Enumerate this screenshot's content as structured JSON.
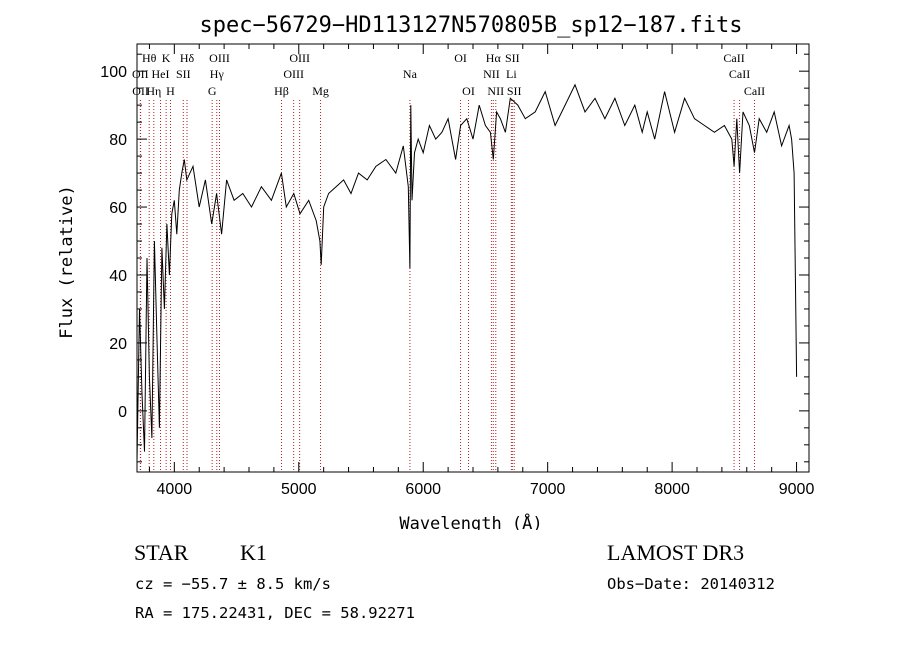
{
  "chart_data": {
    "type": "line",
    "title": "spec−56729−HD113127N570805B_sp12−187.fits",
    "xlabel": "Wavelength (Å)",
    "ylabel": "Flux (relative)",
    "xlim": [
      3700,
      9100
    ],
    "ylim": [
      -18,
      108
    ],
    "xticks": [
      4000,
      5000,
      6000,
      7000,
      8000,
      9000
    ],
    "yticks": [
      0,
      20,
      40,
      60,
      80,
      100
    ],
    "series": [
      {
        "name": "flux",
        "x": [
          3700,
          3720,
          3740,
          3760,
          3780,
          3800,
          3820,
          3840,
          3860,
          3880,
          3900,
          3920,
          3940,
          3960,
          3980,
          4000,
          4020,
          4040,
          4060,
          4080,
          4100,
          4150,
          4200,
          4250,
          4300,
          4340,
          4380,
          4420,
          4480,
          4550,
          4620,
          4700,
          4780,
          4860,
          4900,
          4960,
          5010,
          5080,
          5140,
          5170,
          5180,
          5200,
          5240,
          5300,
          5360,
          5420,
          5480,
          5550,
          5620,
          5700,
          5780,
          5840,
          5880,
          5893,
          5900,
          5910,
          5930,
          5960,
          6000,
          6050,
          6100,
          6150,
          6200,
          6260,
          6300,
          6350,
          6400,
          6450,
          6500,
          6540,
          6563,
          6590,
          6620,
          6660,
          6700,
          6760,
          6820,
          6900,
          6980,
          7060,
          7140,
          7220,
          7300,
          7380,
          7460,
          7540,
          7620,
          7700,
          7760,
          7800,
          7860,
          7940,
          8020,
          8100,
          8180,
          8260,
          8340,
          8420,
          8480,
          8498,
          8520,
          8542,
          8570,
          8620,
          8662,
          8700,
          8760,
          8820,
          8880,
          8940,
          8960,
          8980,
          9000
        ],
        "values": [
          -15,
          30,
          5,
          -12,
          45,
          10,
          -8,
          50,
          22,
          -5,
          48,
          30,
          55,
          40,
          58,
          62,
          52,
          65,
          70,
          74,
          68,
          72,
          60,
          68,
          55,
          64,
          52,
          68,
          62,
          64,
          60,
          66,
          62,
          70,
          60,
          64,
          58,
          62,
          56,
          50,
          43,
          60,
          64,
          66,
          68,
          64,
          70,
          68,
          72,
          74,
          70,
          78,
          66,
          42,
          90,
          62,
          76,
          80,
          76,
          84,
          80,
          82,
          86,
          74,
          84,
          86,
          80,
          90,
          84,
          82,
          74,
          88,
          86,
          82,
          92,
          90,
          86,
          88,
          94,
          84,
          90,
          96,
          88,
          92,
          86,
          92,
          84,
          90,
          82,
          88,
          80,
          94,
          82,
          92,
          86,
          84,
          82,
          84,
          80,
          72,
          86,
          70,
          88,
          84,
          76,
          86,
          82,
          88,
          78,
          84,
          80,
          70,
          10
        ]
      }
    ],
    "lines": [
      {
        "label": "Hθ",
        "wave": 3798,
        "row": 0
      },
      {
        "label": "OII",
        "wave": 3727,
        "row": 1
      },
      {
        "label": "OII",
        "wave": 3729,
        "row": 2
      },
      {
        "label": "K",
        "wave": 3934,
        "row": 0
      },
      {
        "label": "HeI",
        "wave": 3889,
        "row": 1
      },
      {
        "label": "Hη",
        "wave": 3835,
        "row": 2
      },
      {
        "label": "H",
        "wave": 3969,
        "row": 2
      },
      {
        "label": "Hδ",
        "wave": 4102,
        "row": 0
      },
      {
        "label": "SII",
        "wave": 4072,
        "row": 1
      },
      {
        "label": "OIII",
        "wave": 4363,
        "row": 0
      },
      {
        "label": "Hγ",
        "wave": 4341,
        "row": 1
      },
      {
        "label": "G",
        "wave": 4304,
        "row": 2
      },
      {
        "label": "Hβ",
        "wave": 4861,
        "row": 2
      },
      {
        "label": "OIII",
        "wave": 4959,
        "row": 1
      },
      {
        "label": "OIII",
        "wave": 5007,
        "row": 0
      },
      {
        "label": "Mg",
        "wave": 5175,
        "row": 2
      },
      {
        "label": "Na",
        "wave": 5893,
        "row": 1
      },
      {
        "label": "OI",
        "wave": 6300,
        "row": 0
      },
      {
        "label": "OI",
        "wave": 6364,
        "row": 2
      },
      {
        "label": "Hα",
        "wave": 6563,
        "row": 0
      },
      {
        "label": "NII",
        "wave": 6548,
        "row": 1
      },
      {
        "label": "NII",
        "wave": 6583,
        "row": 2
      },
      {
        "label": "SII",
        "wave": 6716,
        "row": 0
      },
      {
        "label": "Li",
        "wave": 6708,
        "row": 1
      },
      {
        "label": "SII",
        "wave": 6731,
        "row": 2
      },
      {
        "label": "CaII",
        "wave": 8498,
        "row": 0
      },
      {
        "label": "CaII",
        "wave": 8542,
        "row": 1
      },
      {
        "label": "CaII",
        "wave": 8662,
        "row": 2
      }
    ]
  },
  "info": {
    "object_class": "STAR",
    "subclass": "K1",
    "survey": "LAMOST DR3",
    "cz": "cz = −55.7 ± 8.5 km/s",
    "obs_date": "Obs−Date: 20140312",
    "coords": "RA = 175.22431, DEC =  58.92271"
  },
  "colors": {
    "line_marker": "#b22222",
    "spectrum": "#000000",
    "axes": "#000000"
  }
}
